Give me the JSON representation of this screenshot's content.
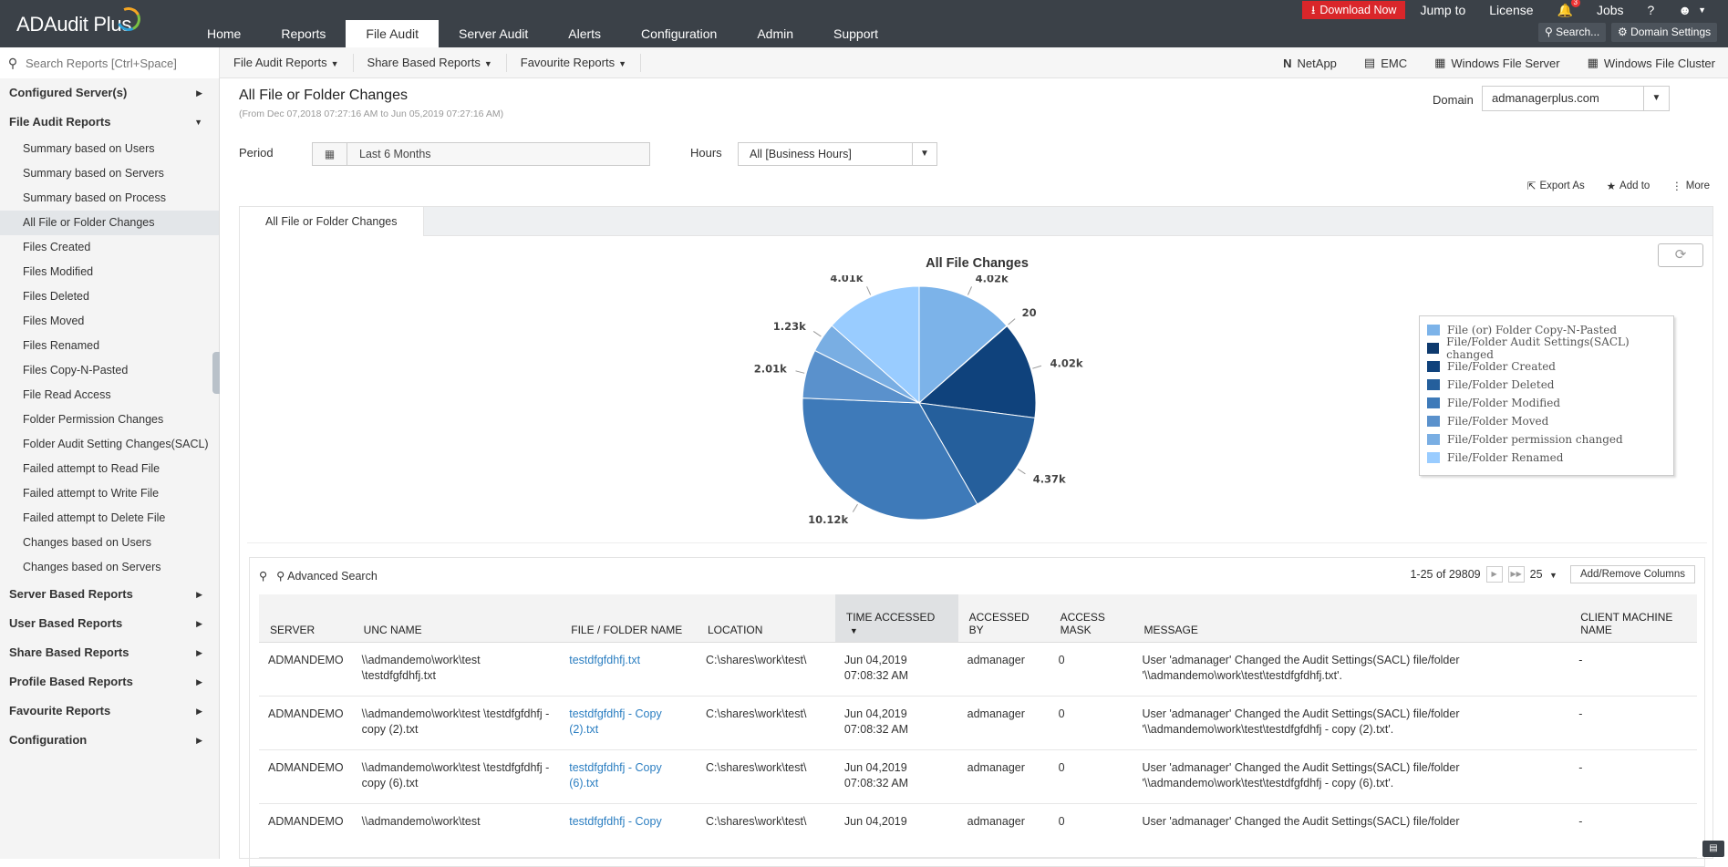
{
  "app": {
    "name": "ADAudit Plus"
  },
  "nav": {
    "tabs": [
      "Home",
      "Reports",
      "File Audit",
      "Server Audit",
      "Alerts",
      "Configuration",
      "Admin",
      "Support"
    ],
    "active": "File Audit"
  },
  "topright": {
    "download": "Download Now",
    "jump": "Jump to",
    "license": "License",
    "jobs": "Jobs",
    "help": "?",
    "badge": "3",
    "search": "Search...",
    "domain_settings": "Domain Settings"
  },
  "search": {
    "placeholder": "Search Reports [Ctrl+Space]"
  },
  "submenu": [
    "File Audit Reports",
    "Share Based Reports",
    "Favourite Reports"
  ],
  "vendors": [
    "NetApp",
    "EMC",
    "Windows File Server",
    "Windows File Cluster"
  ],
  "sidebar": {
    "configured": "Configured Server(s)",
    "file_audit": "File Audit Reports",
    "items": [
      "Summary based on Users",
      "Summary based on Servers",
      "Summary based on Process",
      "All File or Folder Changes",
      "Files Created",
      "Files Modified",
      "Files Deleted",
      "Files Moved",
      "Files Renamed",
      "Files Copy-N-Pasted",
      "File Read Access",
      "Folder Permission Changes",
      "Folder Audit Setting Changes(SACL)",
      "Failed attempt to Read File",
      "Failed attempt to Write File",
      "Failed attempt to Delete File",
      "Changes based on Users",
      "Changes based on Servers"
    ],
    "sections": [
      "Server Based Reports",
      "User Based Reports",
      "Share Based Reports",
      "Profile Based Reports",
      "Favourite Reports",
      "Configuration"
    ]
  },
  "page": {
    "title": "All File or Folder Changes",
    "subtitle": "(From Dec 07,2018 07:27:16 AM to Jun 05,2019 07:27:16 AM)",
    "domain_label": "Domain",
    "domain_value": "admanagerplus.com",
    "period_label": "Period",
    "period_value": "Last 6 Months",
    "hours_label": "Hours",
    "hours_value": "All [Business Hours]",
    "export": "Export As",
    "add_to": "Add to",
    "more": "More",
    "tab": "All File or Folder Changes"
  },
  "chart_data": {
    "type": "pie",
    "title": "All File Changes",
    "slices": [
      {
        "label": "File (or) Folder Copy-N-Pasted",
        "value": 4020,
        "display": "4.02k",
        "color": "#7cb3e9"
      },
      {
        "label": "File/Folder Audit Settings(SACL) changed",
        "value": 20,
        "display": "20",
        "color": "#0e3a6e"
      },
      {
        "label": "File/Folder Created",
        "value": 4020,
        "display": "4.02k",
        "color": "#0f427c"
      },
      {
        "label": "File/Folder Deleted",
        "value": 4370,
        "display": "4.37k",
        "color": "#255f9c"
      },
      {
        "label": "File/Folder Modified",
        "value": 10120,
        "display": "10.12k",
        "color": "#3e7ab9"
      },
      {
        "label": "File/Folder Moved",
        "value": 2010,
        "display": "2.01k",
        "color": "#5a91cc"
      },
      {
        "label": "File/Folder permission changed",
        "value": 1230,
        "display": "1.23k",
        "color": "#79aee3"
      },
      {
        "label": "File/Folder Renamed",
        "value": 4010,
        "display": "4.01k",
        "color": "#99ccff"
      }
    ]
  },
  "grid": {
    "advanced": "Advanced Search",
    "range": "1-25 of 29809",
    "page_size": "25",
    "add_remove": "Add/Remove Columns",
    "columns": [
      "SERVER",
      "UNC NAME",
      "FILE / FOLDER NAME",
      "LOCATION",
      "TIME ACCESSED",
      "ACCESSED BY",
      "ACCESS MASK",
      "MESSAGE",
      "CLIENT MACHINE NAME"
    ],
    "rows": [
      [
        "ADMANDEMO",
        "\\\\admandemo\\work\\test \\testdfgfdhfj.txt",
        "testdfgfdhfj.txt",
        "C:\\shares\\work\\test\\",
        "Jun 04,2019 07:08:32 AM",
        "admanager",
        "0",
        "User 'admanager' Changed the Audit Settings(SACL) file/folder '\\\\admandemo\\work\\test\\testdfgfdhfj.txt'.",
        "-"
      ],
      [
        "ADMANDEMO",
        "\\\\admandemo\\work\\test \\testdfgfdhfj - copy (2).txt",
        "testdfgfdhfj - Copy (2).txt",
        "C:\\shares\\work\\test\\",
        "Jun 04,2019 07:08:32 AM",
        "admanager",
        "0",
        "User 'admanager' Changed the Audit Settings(SACL) file/folder '\\\\admandemo\\work\\test\\testdfgfdhfj - copy (2).txt'.",
        "-"
      ],
      [
        "ADMANDEMO",
        "\\\\admandemo\\work\\test \\testdfgfdhfj - copy (6).txt",
        "testdfgfdhfj - Copy (6).txt",
        "C:\\shares\\work\\test\\",
        "Jun 04,2019 07:08:32 AM",
        "admanager",
        "0",
        "User 'admanager' Changed the Audit Settings(SACL) file/folder '\\\\admandemo\\work\\test\\testdfgfdhfj - copy (6).txt'.",
        "-"
      ],
      [
        "ADMANDEMO",
        "\\\\admandemo\\work\\test",
        "testdfgfdhfj - Copy",
        "C:\\shares\\work\\test\\",
        "Jun 04,2019",
        "admanager",
        "0",
        "User 'admanager' Changed the Audit Settings(SACL) file/folder",
        "-"
      ]
    ]
  }
}
